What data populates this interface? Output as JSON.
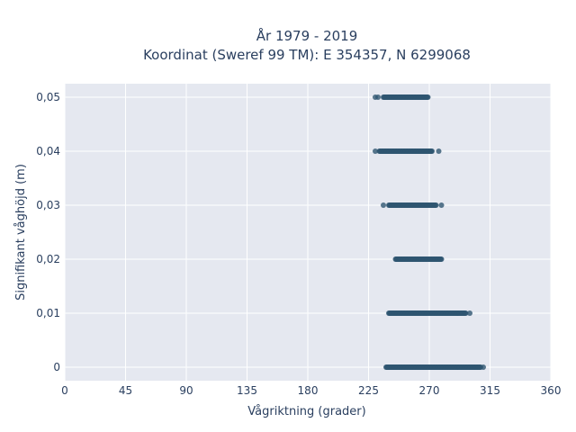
{
  "chart_data": {
    "type": "scatter",
    "title": "År 1979 - 2019",
    "subtitle": "Koordinat (Sweref 99 TM): E 354357, N 6299068",
    "xlabel": "Vågriktning (grader)",
    "ylabel": "Signifikant våghöjd (m)",
    "xlim": [
      0,
      360
    ],
    "ylim": [
      -0.0025,
      0.0525
    ],
    "x_ticks": [
      0,
      45,
      90,
      135,
      180,
      225,
      270,
      315,
      360
    ],
    "x_tick_labels": [
      "0",
      "45",
      "90",
      "135",
      "180",
      "225",
      "270",
      "315",
      "360"
    ],
    "y_ticks": [
      0,
      0.01,
      0.02,
      0.03,
      0.04,
      0.05
    ],
    "y_tick_labels": [
      "0",
      "0,01",
      "0,02",
      "0,03",
      "0,04",
      "0,05"
    ],
    "grid": true,
    "marker_color": "#2e5570",
    "background_color": "#e5e8f0",
    "series": [
      {
        "clusters": [
          {
            "y": 0.05,
            "x_min": 236,
            "x_max": 269,
            "outliers": [
              230,
              232
            ]
          },
          {
            "y": 0.04,
            "x_min": 233,
            "x_max": 272,
            "outliers": [
              230,
              277
            ]
          },
          {
            "y": 0.03,
            "x_min": 240,
            "x_max": 275,
            "outliers": [
              236,
              279
            ]
          },
          {
            "y": 0.02,
            "x_min": 245,
            "x_max": 279,
            "outliers": []
          },
          {
            "y": 0.01,
            "x_min": 240,
            "x_max": 297,
            "outliers": [
              300
            ]
          },
          {
            "y": 0,
            "x_min": 238,
            "x_max": 308,
            "outliers": [
              310
            ]
          }
        ]
      }
    ]
  }
}
